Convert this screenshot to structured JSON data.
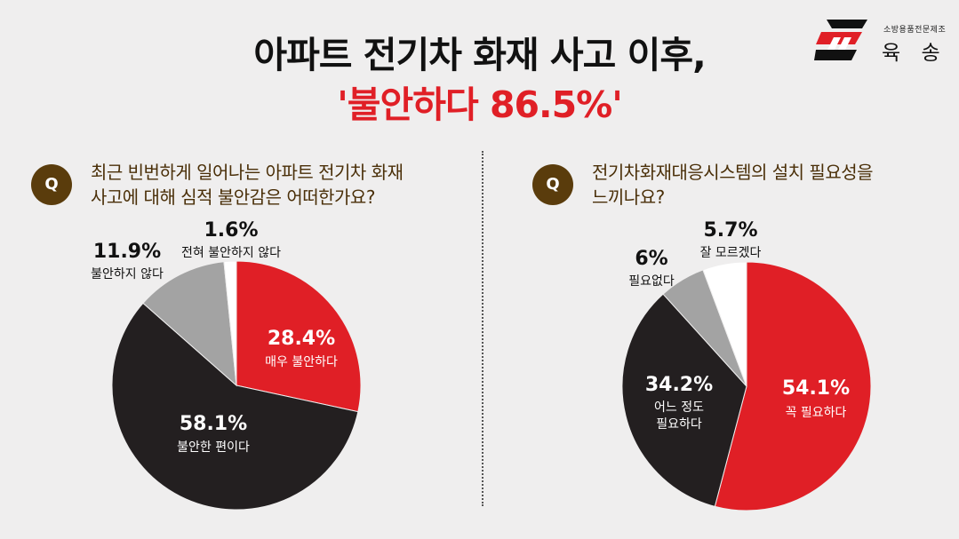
{
  "header": {
    "title_line1": "아파트 전기차 화재 사고 이후,",
    "title_line2": "'불안하다 86.5%'"
  },
  "logo": {
    "small_text": "소방용품전문제조",
    "name": "육 송"
  },
  "colors": {
    "red": "#e01f26",
    "black": "#231f20",
    "gray": "#a3a3a3",
    "white": "#ffffff",
    "q_badge": "#5a3c0c"
  },
  "left_question": {
    "badge": "Q",
    "line1": "최근 빈번하게 일어나는 아파트 전기차 화재",
    "line2": "사고에 대해 심적 불안감은 어떠한가요?"
  },
  "right_question": {
    "badge": "Q",
    "line1": "전기차화재대응시스템의 설치 필요성을",
    "line2": "느끼나요?"
  },
  "chart_data": [
    {
      "type": "pie",
      "title": "최근 빈번하게 일어나는 아파트 전기차 화재 사고에 대해 심적 불안감은 어떠한가요?",
      "slices": [
        {
          "label": "매우 불안하다",
          "value": 28.4,
          "display": "28.4%",
          "color": "#e01f26",
          "label_inside": true
        },
        {
          "label": "불안한 편이다",
          "value": 58.1,
          "display": "58.1%",
          "color": "#231f20",
          "label_inside": true
        },
        {
          "label": "불안하지 않다",
          "value": 11.9,
          "display": "11.9%",
          "color": "#a3a3a3",
          "label_inside": false
        },
        {
          "label": "전혀 불안하지 않다",
          "value": 1.6,
          "display": "1.6%",
          "color": "#ffffff",
          "label_inside": false
        }
      ]
    },
    {
      "type": "pie",
      "title": "전기차화재대응시스템의 설치 필요성을 느끼나요?",
      "slices": [
        {
          "label": "꼭 필요하다",
          "value": 54.1,
          "display": "54.1%",
          "color": "#e01f26",
          "label_inside": true
        },
        {
          "label": "어느 정도\n필요하다",
          "value": 34.2,
          "display": "34.2%",
          "color": "#231f20",
          "label_inside": true
        },
        {
          "label": "필요없다",
          "value": 6,
          "display": "6%",
          "color": "#a3a3a3",
          "label_inside": false
        },
        {
          "label": "잘 모르겠다",
          "value": 5.7,
          "display": "5.7%",
          "color": "#ffffff",
          "label_inside": false
        }
      ]
    }
  ]
}
